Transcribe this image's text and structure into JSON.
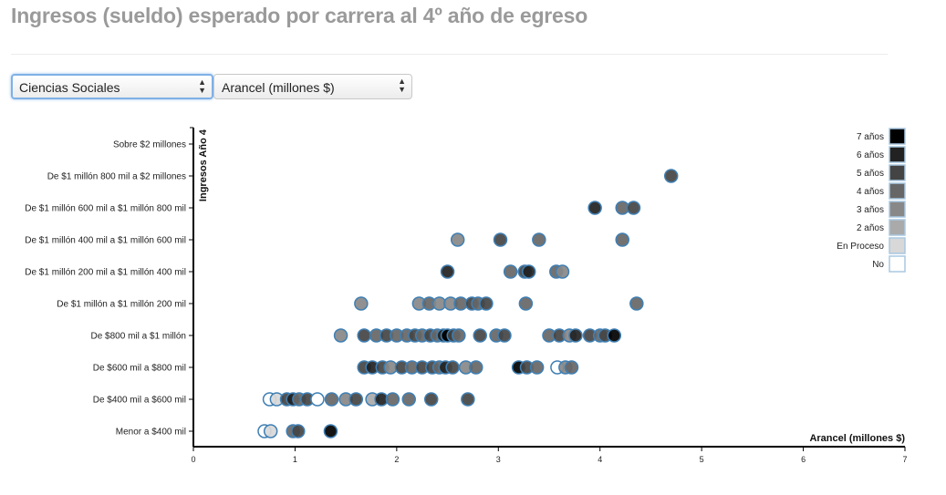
{
  "header": {
    "title": "Ingresos (sueldo) esperado por carrera al 4º año de egreso"
  },
  "controls": {
    "area_select": {
      "value": "Ciencias Sociales"
    },
    "xvar_select": {
      "value": "Arancel (millones $)"
    }
  },
  "colors": {
    "point_stroke": "#3f7fb3",
    "legend_stroke": "#a9c9e2",
    "axis": "#000000",
    "title": "#9a9a9a"
  },
  "chart_data": {
    "type": "scatter",
    "xlabel": "Arancel (millones $)",
    "ylabel": "Ingresos Año 4",
    "xlim": [
      0,
      7
    ],
    "x_ticks": [
      "0",
      "1",
      "2",
      "3",
      "4",
      "5",
      "6",
      "7"
    ],
    "y_categories": [
      "Menor a $400 mil",
      "De $400 mil a $600 mil",
      "De $600 mil a $800 mil",
      "De $800 mil a $1 millón",
      "De $1 millón a $1 millón 200 mil",
      "De $1 millón 200 mil a $1 millón 400 mil",
      "De $1 millón 400 mil a $1 millón 600 mil",
      "De $1 millón 600 mil a $1 millón 800 mil",
      "De $1 millón 800 mil a $2 millones",
      "Sobre $2 millones"
    ],
    "legend": {
      "placement": "top-right",
      "entries": [
        {
          "label": "7 años",
          "color": "#000000"
        },
        {
          "label": "6 años",
          "color": "#222222"
        },
        {
          "label": "5 años",
          "color": "#444444"
        },
        {
          "label": "4 años",
          "color": "#666666"
        },
        {
          "label": "3 años",
          "color": "#888888"
        },
        {
          "label": "2 años",
          "color": "#aaaaaa"
        },
        {
          "label": "En Proceso",
          "color": "#d8d8d8"
        },
        {
          "label": "No",
          "color": "#ffffff"
        }
      ]
    },
    "points": [
      {
        "x": 4.7,
        "y": 8,
        "c": "5 años"
      },
      {
        "x": 3.95,
        "y": 7,
        "c": "6 años"
      },
      {
        "x": 4.22,
        "y": 7,
        "c": "4 años"
      },
      {
        "x": 4.33,
        "y": 7,
        "c": "5 años"
      },
      {
        "x": 2.6,
        "y": 6,
        "c": "3 años"
      },
      {
        "x": 3.02,
        "y": 6,
        "c": "5 años"
      },
      {
        "x": 3.4,
        "y": 6,
        "c": "4 años"
      },
      {
        "x": 4.22,
        "y": 6,
        "c": "4 años"
      },
      {
        "x": 2.5,
        "y": 5,
        "c": "6 años"
      },
      {
        "x": 3.12,
        "y": 5,
        "c": "4 años"
      },
      {
        "x": 3.26,
        "y": 5,
        "c": "5 años"
      },
      {
        "x": 3.3,
        "y": 5,
        "c": "6 años"
      },
      {
        "x": 3.57,
        "y": 5,
        "c": "4 años"
      },
      {
        "x": 3.63,
        "y": 5,
        "c": "3 años"
      },
      {
        "x": 1.65,
        "y": 4,
        "c": "3 años"
      },
      {
        "x": 2.22,
        "y": 4,
        "c": "3 años"
      },
      {
        "x": 2.32,
        "y": 4,
        "c": "4 años"
      },
      {
        "x": 2.42,
        "y": 4,
        "c": "3 años"
      },
      {
        "x": 2.53,
        "y": 4,
        "c": "3 años"
      },
      {
        "x": 2.63,
        "y": 4,
        "c": "4 años"
      },
      {
        "x": 2.74,
        "y": 4,
        "c": "5 años"
      },
      {
        "x": 2.8,
        "y": 4,
        "c": "4 años"
      },
      {
        "x": 2.88,
        "y": 4,
        "c": "5 años"
      },
      {
        "x": 3.27,
        "y": 4,
        "c": "4 años"
      },
      {
        "x": 4.36,
        "y": 4,
        "c": "4 años"
      },
      {
        "x": 1.45,
        "y": 3,
        "c": "3 años"
      },
      {
        "x": 1.68,
        "y": 3,
        "c": "5 años"
      },
      {
        "x": 1.8,
        "y": 3,
        "c": "4 años"
      },
      {
        "x": 1.9,
        "y": 3,
        "c": "5 años"
      },
      {
        "x": 2.0,
        "y": 3,
        "c": "4 años"
      },
      {
        "x": 2.1,
        "y": 3,
        "c": "4 años"
      },
      {
        "x": 2.18,
        "y": 3,
        "c": "5 años"
      },
      {
        "x": 2.25,
        "y": 3,
        "c": "4 años"
      },
      {
        "x": 2.33,
        "y": 3,
        "c": "5 años"
      },
      {
        "x": 2.4,
        "y": 3,
        "c": "4 años"
      },
      {
        "x": 2.46,
        "y": 3,
        "c": "6 años"
      },
      {
        "x": 2.5,
        "y": 3,
        "c": "7 años"
      },
      {
        "x": 2.56,
        "y": 3,
        "c": "5 años"
      },
      {
        "x": 2.61,
        "y": 3,
        "c": "4 años"
      },
      {
        "x": 2.82,
        "y": 3,
        "c": "5 años"
      },
      {
        "x": 2.98,
        "y": 3,
        "c": "4 años"
      },
      {
        "x": 3.06,
        "y": 3,
        "c": "5 años"
      },
      {
        "x": 3.5,
        "y": 3,
        "c": "4 años"
      },
      {
        "x": 3.6,
        "y": 3,
        "c": "5 años"
      },
      {
        "x": 3.7,
        "y": 3,
        "c": "3 años"
      },
      {
        "x": 3.76,
        "y": 3,
        "c": "6 años"
      },
      {
        "x": 3.9,
        "y": 3,
        "c": "5 años"
      },
      {
        "x": 4.0,
        "y": 3,
        "c": "4 años"
      },
      {
        "x": 4.05,
        "y": 3,
        "c": "5 años"
      },
      {
        "x": 4.14,
        "y": 3,
        "c": "7 años"
      },
      {
        "x": 1.68,
        "y": 2,
        "c": "5 años"
      },
      {
        "x": 1.76,
        "y": 2,
        "c": "6 años"
      },
      {
        "x": 1.86,
        "y": 2,
        "c": "5 años"
      },
      {
        "x": 1.94,
        "y": 2,
        "c": "3 años"
      },
      {
        "x": 2.05,
        "y": 2,
        "c": "5 años"
      },
      {
        "x": 2.15,
        "y": 2,
        "c": "4 años"
      },
      {
        "x": 2.25,
        "y": 2,
        "c": "5 años"
      },
      {
        "x": 2.35,
        "y": 2,
        "c": "5 años"
      },
      {
        "x": 2.42,
        "y": 2,
        "c": "4 años"
      },
      {
        "x": 2.48,
        "y": 2,
        "c": "6 años"
      },
      {
        "x": 2.55,
        "y": 2,
        "c": "5 años"
      },
      {
        "x": 2.68,
        "y": 2,
        "c": "3 años"
      },
      {
        "x": 2.78,
        "y": 2,
        "c": "4 años"
      },
      {
        "x": 3.2,
        "y": 2,
        "c": "7 años"
      },
      {
        "x": 3.28,
        "y": 2,
        "c": "5 años"
      },
      {
        "x": 3.38,
        "y": 2,
        "c": "4 años"
      },
      {
        "x": 3.58,
        "y": 2,
        "c": "No"
      },
      {
        "x": 3.66,
        "y": 2,
        "c": "3 años"
      },
      {
        "x": 3.72,
        "y": 2,
        "c": "4 años"
      },
      {
        "x": 0.75,
        "y": 1,
        "c": "No"
      },
      {
        "x": 0.82,
        "y": 1,
        "c": "En Proceso"
      },
      {
        "x": 0.92,
        "y": 1,
        "c": "5 años"
      },
      {
        "x": 0.98,
        "y": 1,
        "c": "6 años"
      },
      {
        "x": 1.04,
        "y": 1,
        "c": "4 años"
      },
      {
        "x": 1.12,
        "y": 1,
        "c": "5 años"
      },
      {
        "x": 1.22,
        "y": 1,
        "c": "No"
      },
      {
        "x": 1.36,
        "y": 1,
        "c": "4 años"
      },
      {
        "x": 1.5,
        "y": 1,
        "c": "3 años"
      },
      {
        "x": 1.6,
        "y": 1,
        "c": "5 años"
      },
      {
        "x": 1.76,
        "y": 1,
        "c": "2 años"
      },
      {
        "x": 1.85,
        "y": 1,
        "c": "6 años"
      },
      {
        "x": 1.96,
        "y": 1,
        "c": "4 años"
      },
      {
        "x": 2.12,
        "y": 1,
        "c": "4 años"
      },
      {
        "x": 2.34,
        "y": 1,
        "c": "5 años"
      },
      {
        "x": 2.7,
        "y": 1,
        "c": "5 años"
      },
      {
        "x": 0.7,
        "y": 0,
        "c": "No"
      },
      {
        "x": 0.76,
        "y": 0,
        "c": "En Proceso"
      },
      {
        "x": 0.98,
        "y": 0,
        "c": "4 años"
      },
      {
        "x": 1.03,
        "y": 0,
        "c": "5 años"
      },
      {
        "x": 1.35,
        "y": 0,
        "c": "7 años"
      }
    ]
  }
}
